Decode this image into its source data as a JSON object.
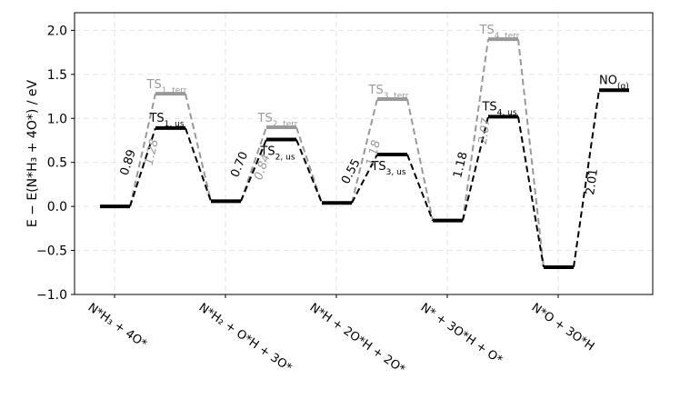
{
  "chart_data": {
    "type": "line",
    "subtype": "reaction-energy-diagram",
    "ylabel": "E − E(N*H₃ + 4O*) / eV",
    "ylim": [
      -1.0,
      2.2
    ],
    "yticks": [
      -1.0,
      -0.5,
      0.0,
      0.5,
      1.0,
      1.5,
      2.0
    ],
    "ytick_labels": [
      "−1.0",
      "−0.5",
      "0.0",
      "0.5",
      "1.0",
      "1.5",
      "2.0"
    ],
    "grid": true,
    "categories": [
      "N*H₃ + 4O*",
      "N*H₂ + O*H + 3O*",
      "N*H + 2O*H + 2O*",
      "N* + 3O*H + O*",
      "N*O + 3O*H"
    ],
    "intermediates": [
      0.0,
      0.06,
      0.04,
      -0.16,
      -0.69
    ],
    "final_state": {
      "label": "NO(g)",
      "value": 1.32
    },
    "colors": {
      "terrace": "#999999",
      "step": "#000000"
    },
    "series": [
      {
        "name_labels": [
          "TS1, terr",
          "TS2, terr",
          "TS3, terr",
          "TS4, terr"
        ],
        "ts_values": [
          1.28,
          0.9,
          1.22,
          1.9
        ],
        "barrier_labels": [
          "1.28",
          "0.84",
          "1.18",
          "2.07"
        ]
      },
      {
        "name_labels": [
          "TS1, us",
          "TS2, us",
          "TS3, us",
          "TS4, us"
        ],
        "ts_values": [
          0.89,
          0.76,
          0.59,
          1.02
        ],
        "barrier_labels": [
          "0.89",
          "0.70",
          "0.55",
          "1.18"
        ],
        "final_barrier_label": "2.01"
      }
    ]
  }
}
